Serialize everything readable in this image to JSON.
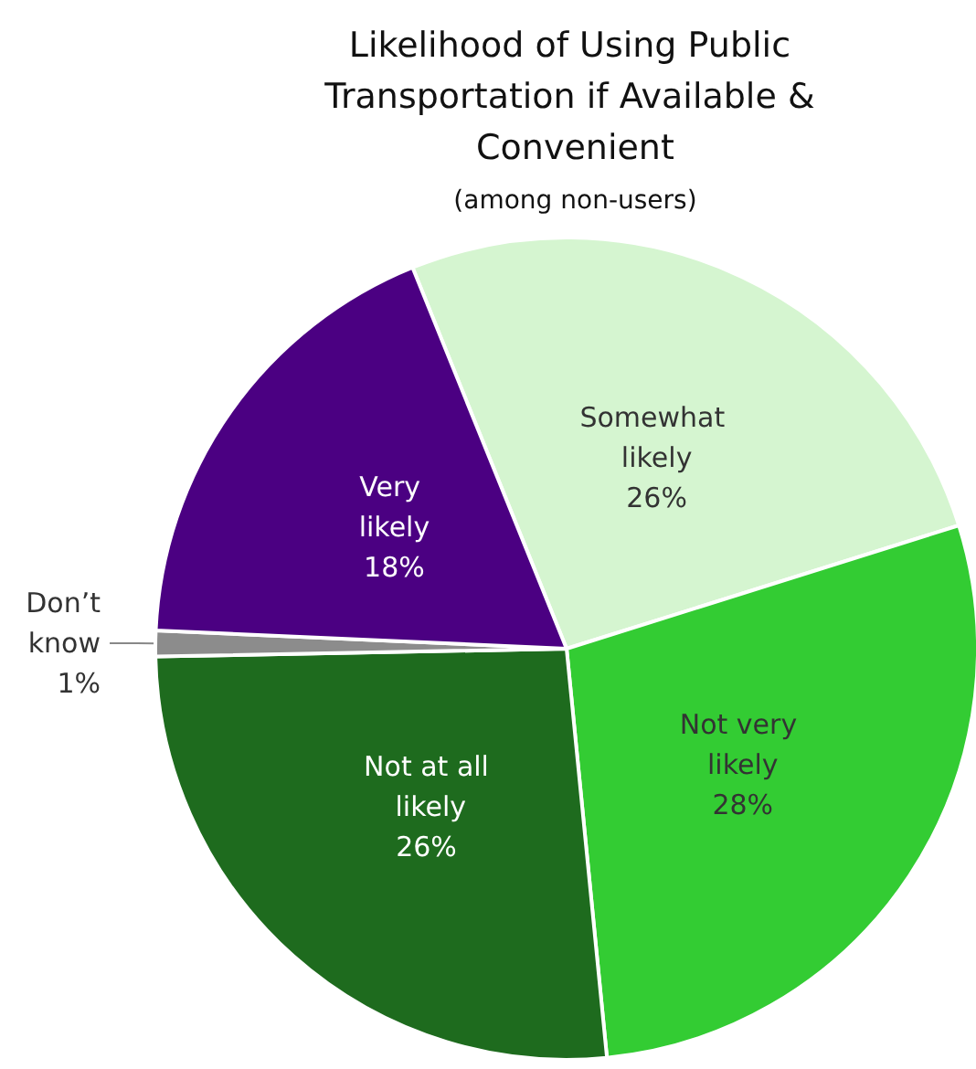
{
  "chart_data": {
    "type": "pie",
    "title": "Likelihood of Using Public Transportation if Available & Convenient",
    "subtitle": "(among non-users)",
    "categories": [
      "Somewhat likely",
      "Not very likely",
      "Not at all likely",
      "Don’t know",
      "Very likely"
    ],
    "values": [
      26,
      28,
      26,
      1,
      18
    ],
    "value_labels": [
      "26%",
      "28%",
      "26%",
      "1%",
      "18%"
    ],
    "colors": [
      "#d5f5d0",
      "#33cc33",
      "#1e6b1e",
      "#8c8c8c",
      "#4b0082"
    ],
    "legend": false
  }
}
